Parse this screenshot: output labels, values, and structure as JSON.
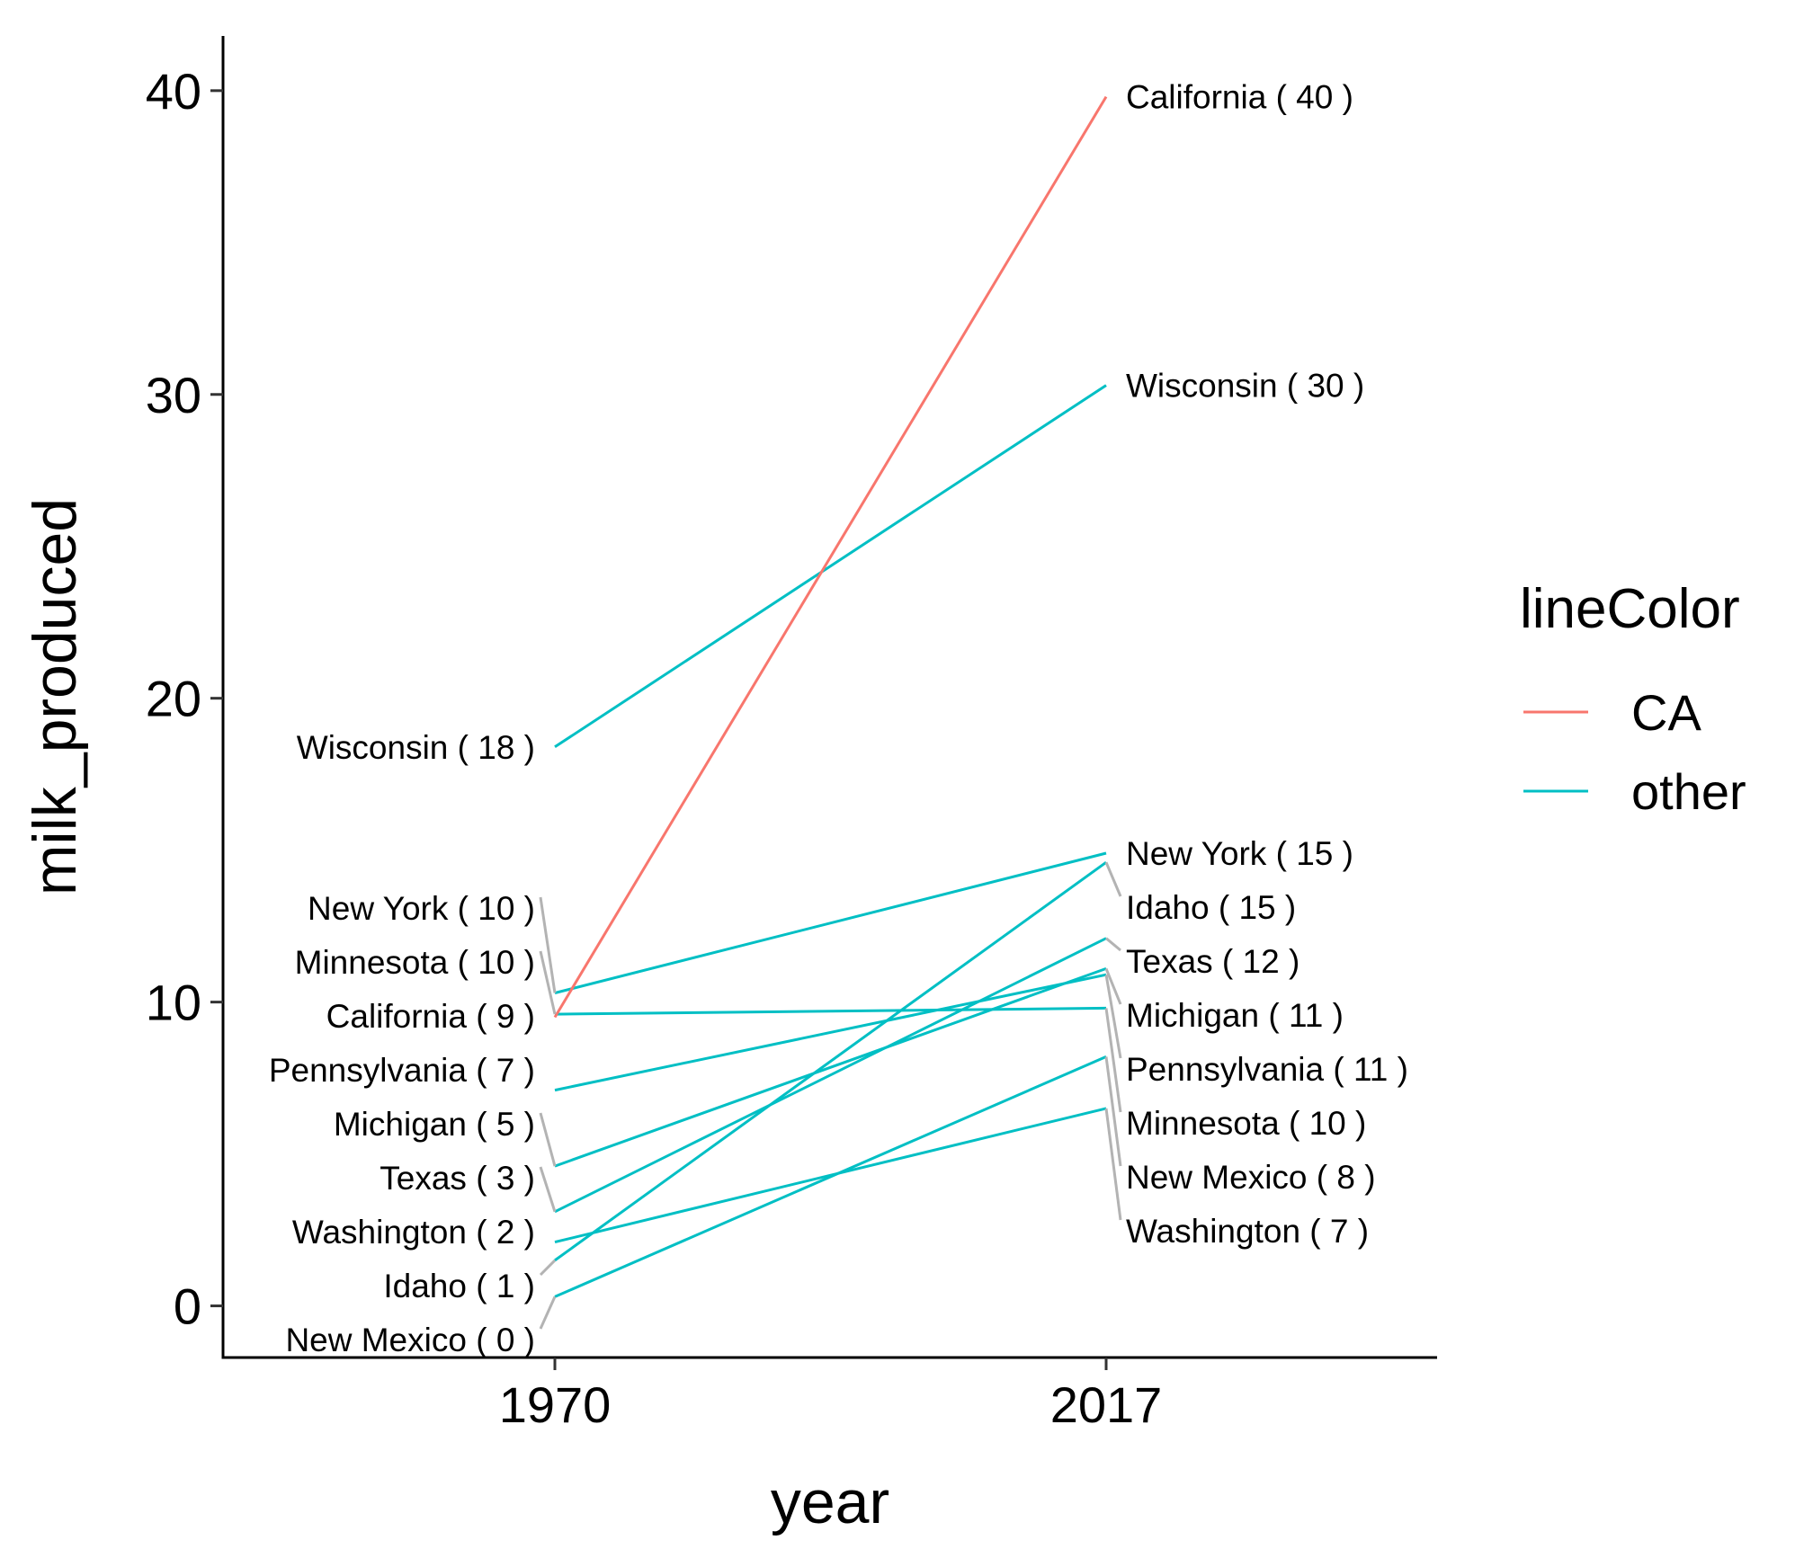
{
  "chart_data": {
    "type": "line",
    "title": "",
    "xlabel": "year",
    "ylabel": "milk_produced",
    "x": [
      "1970",
      "2017"
    ],
    "ylim": [
      -1.7,
      41.8
    ],
    "yticks": [
      0,
      10,
      20,
      30,
      40
    ],
    "grid": false,
    "legend": {
      "title": "lineColor",
      "position": "right",
      "entries": [
        {
          "label": "CA",
          "color": "#F8766D"
        },
        {
          "label": "other",
          "color": "#00BFC4"
        }
      ]
    },
    "series": [
      {
        "state": "California",
        "group": "CA",
        "values": [
          9.5,
          39.8
        ],
        "label_1970": "California  ( 9 )",
        "label_2017": "California  ( 40 )"
      },
      {
        "state": "Wisconsin",
        "group": "other",
        "values": [
          18.4,
          30.3
        ],
        "label_1970": "Wisconsin  ( 18 )",
        "label_2017": "Wisconsin  ( 30 )"
      },
      {
        "state": "New York",
        "group": "other",
        "values": [
          10.3,
          14.9
        ],
        "label_1970": "New York  ( 10 )",
        "label_2017": "New York  ( 15 )"
      },
      {
        "state": "Idaho",
        "group": "other",
        "values": [
          1.5,
          14.6
        ],
        "label_1970": "Idaho  ( 1 )",
        "label_2017": "Idaho  ( 15 )"
      },
      {
        "state": "Texas",
        "group": "other",
        "values": [
          3.1,
          12.1
        ],
        "label_1970": "Texas  ( 3 )",
        "label_2017": "Texas  ( 12 )"
      },
      {
        "state": "Michigan",
        "group": "other",
        "values": [
          4.6,
          11.1
        ],
        "label_1970": "Michigan  ( 5 )",
        "label_2017": "Michigan  ( 11 )"
      },
      {
        "state": "Pennsylvania",
        "group": "other",
        "values": [
          7.1,
          10.9
        ],
        "label_1970": "Pennsylvania  ( 7 )",
        "label_2017": "Pennsylvania  ( 11 )"
      },
      {
        "state": "Minnesota",
        "group": "other",
        "values": [
          9.6,
          9.8
        ],
        "label_1970": "Minnesota  ( 10 )",
        "label_2017": "Minnesota  ( 10 )"
      },
      {
        "state": "New Mexico",
        "group": "other",
        "values": [
          0.3,
          8.2
        ],
        "label_1970": "New Mexico  ( 0 )",
        "label_2017": "New Mexico  ( 8 )"
      },
      {
        "state": "Washington",
        "group": "other",
        "values": [
          2.1,
          6.5
        ],
        "label_1970": "Washington  ( 2 )",
        "label_2017": "Washington  ( 7 )"
      }
    ]
  }
}
